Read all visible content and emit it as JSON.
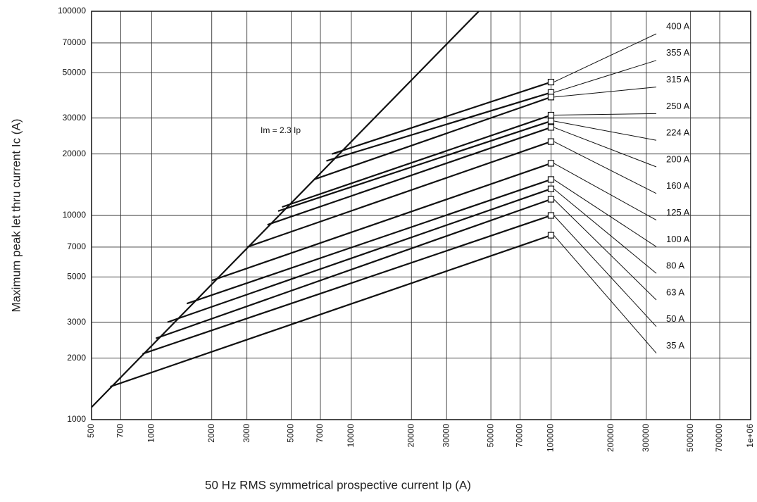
{
  "chart_data": {
    "type": "line",
    "x_label": "50 Hz RMS symmetrical prospective current Ip (A)",
    "y_label": "Maximum peak let thru current Ic (A)",
    "annotation": "Im = 2.3 Ip",
    "xlog": true,
    "ylog": true,
    "grid": true,
    "color": "#111111",
    "xlim": [
      500,
      1000000
    ],
    "ylim": [
      1000,
      100000
    ],
    "xticks": [
      500,
      700,
      1000,
      2000,
      3000,
      5000,
      7000,
      10000,
      20000,
      30000,
      50000,
      70000,
      100000,
      200000,
      300000,
      500000,
      700000,
      {
        "value": 1000000,
        "label": "1e+06"
      }
    ],
    "yticks": [
      1000,
      2000,
      3000,
      5000,
      7000,
      10000,
      20000,
      30000,
      50000,
      70000,
      100000
    ],
    "limit_line": {
      "x": [
        500,
        43500
      ],
      "values": [
        1150,
        100000
      ]
    },
    "series": [
      {
        "name": "400 A",
        "x": [
          8000,
          100000
        ],
        "values": [
          20000,
          45000
        ]
      },
      {
        "name": "355 A",
        "x": [
          7500,
          100000
        ],
        "values": [
          18500,
          40000
        ]
      },
      {
        "name": "315 A",
        "x": [
          6500,
          100000
        ],
        "values": [
          15000,
          38000
        ]
      },
      {
        "name": "250 A",
        "x": [
          4500,
          100000
        ],
        "values": [
          11000,
          31000
        ]
      },
      {
        "name": "224 A",
        "x": [
          4300,
          100000
        ],
        "values": [
          10500,
          29000
        ]
      },
      {
        "name": "200 A",
        "x": [
          3800,
          100000
        ],
        "values": [
          9000,
          27000
        ]
      },
      {
        "name": "160 A",
        "x": [
          3000,
          100000
        ],
        "values": [
          7000,
          23000
        ]
      },
      {
        "name": "125 A",
        "x": [
          2000,
          100000
        ],
        "values": [
          4800,
          18000
        ]
      },
      {
        "name": "100 A",
        "x": [
          1500,
          100000
        ],
        "values": [
          3700,
          15000
        ]
      },
      {
        "name": "80 A",
        "x": [
          1200,
          100000
        ],
        "values": [
          3000,
          13500
        ]
      },
      {
        "name": "63 A",
        "x": [
          1050,
          100000
        ],
        "values": [
          2500,
          12000
        ]
      },
      {
        "name": "50 A",
        "x": [
          900,
          100000
        ],
        "values": [
          2100,
          10000
        ]
      },
      {
        "name": "35 A",
        "x": [
          620,
          100000
        ],
        "values": [
          1450,
          8000
        ]
      }
    ]
  }
}
